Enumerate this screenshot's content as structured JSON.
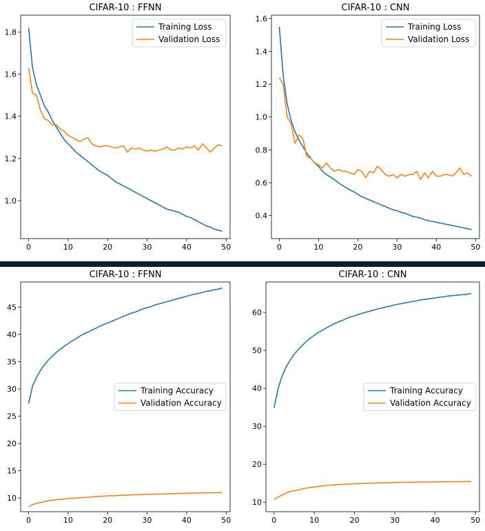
{
  "colors": {
    "training": "#1f77b4",
    "validation": "#ff7f0e"
  },
  "chart_data": [
    {
      "type": "line",
      "title": "CIFAR-10 : FFNN",
      "xlabel": "",
      "ylabel": "",
      "xlim": [
        -2,
        51
      ],
      "ylim": [
        0.82,
        1.88
      ],
      "xticks": [
        "0",
        "10",
        "20",
        "30",
        "40",
        "50"
      ],
      "yticks": [
        "1.0",
        "1.2",
        "1.4",
        "1.6",
        "1.8"
      ],
      "legend_position": "upper-right",
      "x": [
        0,
        1,
        2,
        3,
        4,
        5,
        6,
        7,
        8,
        9,
        10,
        11,
        12,
        13,
        14,
        15,
        16,
        17,
        18,
        19,
        20,
        21,
        22,
        23,
        24,
        25,
        26,
        27,
        28,
        29,
        30,
        31,
        32,
        33,
        34,
        35,
        36,
        37,
        38,
        39,
        40,
        41,
        42,
        43,
        44,
        45,
        46,
        47,
        48,
        49
      ],
      "series": [
        {
          "name": "Training Loss",
          "color_key": "training",
          "values": [
            1.82,
            1.63,
            1.55,
            1.5,
            1.45,
            1.42,
            1.38,
            1.35,
            1.32,
            1.29,
            1.27,
            1.25,
            1.23,
            1.215,
            1.2,
            1.185,
            1.17,
            1.155,
            1.14,
            1.13,
            1.12,
            1.105,
            1.09,
            1.08,
            1.07,
            1.06,
            1.05,
            1.04,
            1.03,
            1.02,
            1.01,
            1.0,
            0.99,
            0.98,
            0.97,
            0.96,
            0.955,
            0.95,
            0.945,
            0.935,
            0.925,
            0.92,
            0.91,
            0.9,
            0.89,
            0.88,
            0.875,
            0.865,
            0.86,
            0.855
          ]
        },
        {
          "name": "Validation Loss",
          "color_key": "validation",
          "values": [
            1.63,
            1.51,
            1.5,
            1.43,
            1.39,
            1.38,
            1.36,
            1.36,
            1.34,
            1.33,
            1.31,
            1.3,
            1.29,
            1.28,
            1.29,
            1.3,
            1.27,
            1.26,
            1.255,
            1.26,
            1.26,
            1.255,
            1.25,
            1.255,
            1.26,
            1.23,
            1.25,
            1.245,
            1.25,
            1.24,
            1.235,
            1.24,
            1.235,
            1.24,
            1.245,
            1.255,
            1.24,
            1.24,
            1.25,
            1.245,
            1.255,
            1.25,
            1.26,
            1.24,
            1.27,
            1.25,
            1.23,
            1.25,
            1.265,
            1.26
          ]
        }
      ]
    },
    {
      "type": "line",
      "title": "CIFAR-10 : CNN",
      "xlabel": "",
      "ylabel": "",
      "xlim": [
        -2,
        51
      ],
      "ylim": [
        0.26,
        1.62
      ],
      "xticks": [
        "0",
        "10",
        "20",
        "30",
        "40",
        "50"
      ],
      "yticks": [
        "0.4",
        "0.6",
        "0.8",
        "1.0",
        "1.2",
        "1.4",
        "1.6"
      ],
      "legend_position": "upper-right",
      "x": [
        0,
        1,
        2,
        3,
        4,
        5,
        6,
        7,
        8,
        9,
        10,
        11,
        12,
        13,
        14,
        15,
        16,
        17,
        18,
        19,
        20,
        21,
        22,
        23,
        24,
        25,
        26,
        27,
        28,
        29,
        30,
        31,
        32,
        33,
        34,
        35,
        36,
        37,
        38,
        39,
        40,
        41,
        42,
        43,
        44,
        45,
        46,
        47,
        48,
        49
      ],
      "series": [
        {
          "name": "Training Loss",
          "color_key": "training",
          "values": [
            1.55,
            1.25,
            1.08,
            0.98,
            0.91,
            0.86,
            0.82,
            0.78,
            0.75,
            0.72,
            0.7,
            0.67,
            0.65,
            0.635,
            0.62,
            0.6,
            0.585,
            0.57,
            0.555,
            0.545,
            0.53,
            0.515,
            0.505,
            0.495,
            0.485,
            0.475,
            0.465,
            0.455,
            0.445,
            0.435,
            0.43,
            0.42,
            0.415,
            0.405,
            0.395,
            0.39,
            0.385,
            0.375,
            0.37,
            0.365,
            0.36,
            0.355,
            0.35,
            0.345,
            0.34,
            0.335,
            0.33,
            0.325,
            0.32,
            0.315
          ]
        },
        {
          "name": "Validation Loss",
          "color_key": "validation",
          "values": [
            1.24,
            1.2,
            1.0,
            0.96,
            0.84,
            0.89,
            0.87,
            0.76,
            0.75,
            0.72,
            0.71,
            0.69,
            0.72,
            0.69,
            0.67,
            0.68,
            0.67,
            0.67,
            0.66,
            0.65,
            0.68,
            0.67,
            0.63,
            0.67,
            0.66,
            0.7,
            0.68,
            0.65,
            0.64,
            0.65,
            0.63,
            0.65,
            0.64,
            0.65,
            0.65,
            0.67,
            0.62,
            0.66,
            0.63,
            0.67,
            0.64,
            0.64,
            0.65,
            0.65,
            0.64,
            0.66,
            0.69,
            0.65,
            0.66,
            0.64
          ]
        }
      ]
    },
    {
      "type": "line",
      "title": "CIFAR-10 : FFNN",
      "xlabel": "",
      "ylabel": "",
      "xlim": [
        -2,
        51
      ],
      "ylim": [
        7.5,
        49.6
      ],
      "xticks": [
        "0",
        "10",
        "20",
        "30",
        "40",
        "50"
      ],
      "yticks": [
        "10",
        "15",
        "20",
        "25",
        "30",
        "35",
        "40",
        "45"
      ],
      "legend_position": "center-right",
      "x": [
        0,
        1,
        2,
        3,
        4,
        5,
        6,
        7,
        8,
        9,
        10,
        11,
        12,
        13,
        14,
        15,
        16,
        17,
        18,
        19,
        20,
        21,
        22,
        23,
        24,
        25,
        26,
        27,
        28,
        29,
        30,
        31,
        32,
        33,
        34,
        35,
        36,
        37,
        38,
        39,
        40,
        41,
        42,
        43,
        44,
        45,
        46,
        47,
        48,
        49
      ],
      "series": [
        {
          "name": "Training Accuracy",
          "color_key": "training",
          "values": [
            27.3,
            30.5,
            32.1,
            33.4,
            34.4,
            35.3,
            36.0,
            36.7,
            37.3,
            37.8,
            38.3,
            38.8,
            39.2,
            39.7,
            40.1,
            40.4,
            40.8,
            41.1,
            41.5,
            41.8,
            42.1,
            42.4,
            42.7,
            43.0,
            43.3,
            43.6,
            43.9,
            44.1,
            44.4,
            44.7,
            44.9,
            45.1,
            45.4,
            45.6,
            45.8,
            46.0,
            46.2,
            46.4,
            46.6,
            46.8,
            47.0,
            47.2,
            47.4,
            47.5,
            47.7,
            47.9,
            48.0,
            48.2,
            48.3,
            48.5
          ]
        },
        {
          "name": "Validation Accuracy",
          "color_key": "validation",
          "values": [
            8.4,
            8.8,
            9.0,
            9.2,
            9.35,
            9.5,
            9.6,
            9.7,
            9.75,
            9.8,
            9.9,
            9.95,
            10.0,
            10.05,
            10.1,
            10.15,
            10.2,
            10.25,
            10.3,
            10.35,
            10.4,
            10.42,
            10.45,
            10.5,
            10.52,
            10.55,
            10.58,
            10.6,
            10.63,
            10.65,
            10.68,
            10.7,
            10.72,
            10.74,
            10.76,
            10.78,
            10.8,
            10.82,
            10.84,
            10.86,
            10.88,
            10.9,
            10.91,
            10.92,
            10.94,
            10.96,
            10.97,
            10.98,
            11.0,
            11.02
          ]
        }
      ]
    },
    {
      "type": "line",
      "title": "CIFAR-10 : CNN",
      "xlabel": "",
      "ylabel": "",
      "xlim": [
        -2,
        51
      ],
      "ylim": [
        7.5,
        68.0
      ],
      "xticks": [
        "0",
        "10",
        "20",
        "30",
        "40",
        "50"
      ],
      "yticks": [
        "10",
        "20",
        "30",
        "40",
        "50",
        "60"
      ],
      "legend_position": "center-right",
      "x": [
        0,
        1,
        2,
        3,
        4,
        5,
        6,
        7,
        8,
        9,
        10,
        11,
        12,
        13,
        14,
        15,
        16,
        17,
        18,
        19,
        20,
        21,
        22,
        23,
        24,
        25,
        26,
        27,
        28,
        29,
        30,
        31,
        32,
        33,
        34,
        35,
        36,
        37,
        38,
        39,
        40,
        41,
        42,
        43,
        44,
        45,
        46,
        47,
        48,
        49
      ],
      "series": [
        {
          "name": "Training Accuracy",
          "color_key": "training",
          "values": [
            34.8,
            39.8,
            43.2,
            45.6,
            47.4,
            48.9,
            50.2,
            51.3,
            52.3,
            53.2,
            54.0,
            54.7,
            55.3,
            55.9,
            56.5,
            57.0,
            57.5,
            57.9,
            58.4,
            58.8,
            59.1,
            59.5,
            59.8,
            60.1,
            60.4,
            60.7,
            61.0,
            61.2,
            61.5,
            61.7,
            62.0,
            62.2,
            62.4,
            62.6,
            62.8,
            63.0,
            63.2,
            63.4,
            63.5,
            63.7,
            63.8,
            64.0,
            64.1,
            64.3,
            64.4,
            64.5,
            64.6,
            64.7,
            64.8,
            65.0
          ]
        },
        {
          "name": "Validation Accuracy",
          "color_key": "validation",
          "values": [
            10.8,
            11.3,
            11.9,
            12.4,
            12.8,
            13.0,
            13.2,
            13.5,
            13.7,
            13.9,
            14.0,
            14.1,
            14.3,
            14.4,
            14.5,
            14.6,
            14.65,
            14.7,
            14.75,
            14.8,
            14.85,
            14.9,
            14.95,
            15.0,
            15.02,
            15.05,
            15.08,
            15.1,
            15.12,
            15.15,
            15.18,
            15.2,
            15.22,
            15.24,
            15.26,
            15.28,
            15.3,
            15.31,
            15.32,
            15.34,
            15.35,
            15.36,
            15.38,
            15.39,
            15.4,
            15.41,
            15.42,
            15.43,
            15.44,
            15.45
          ]
        }
      ]
    }
  ]
}
